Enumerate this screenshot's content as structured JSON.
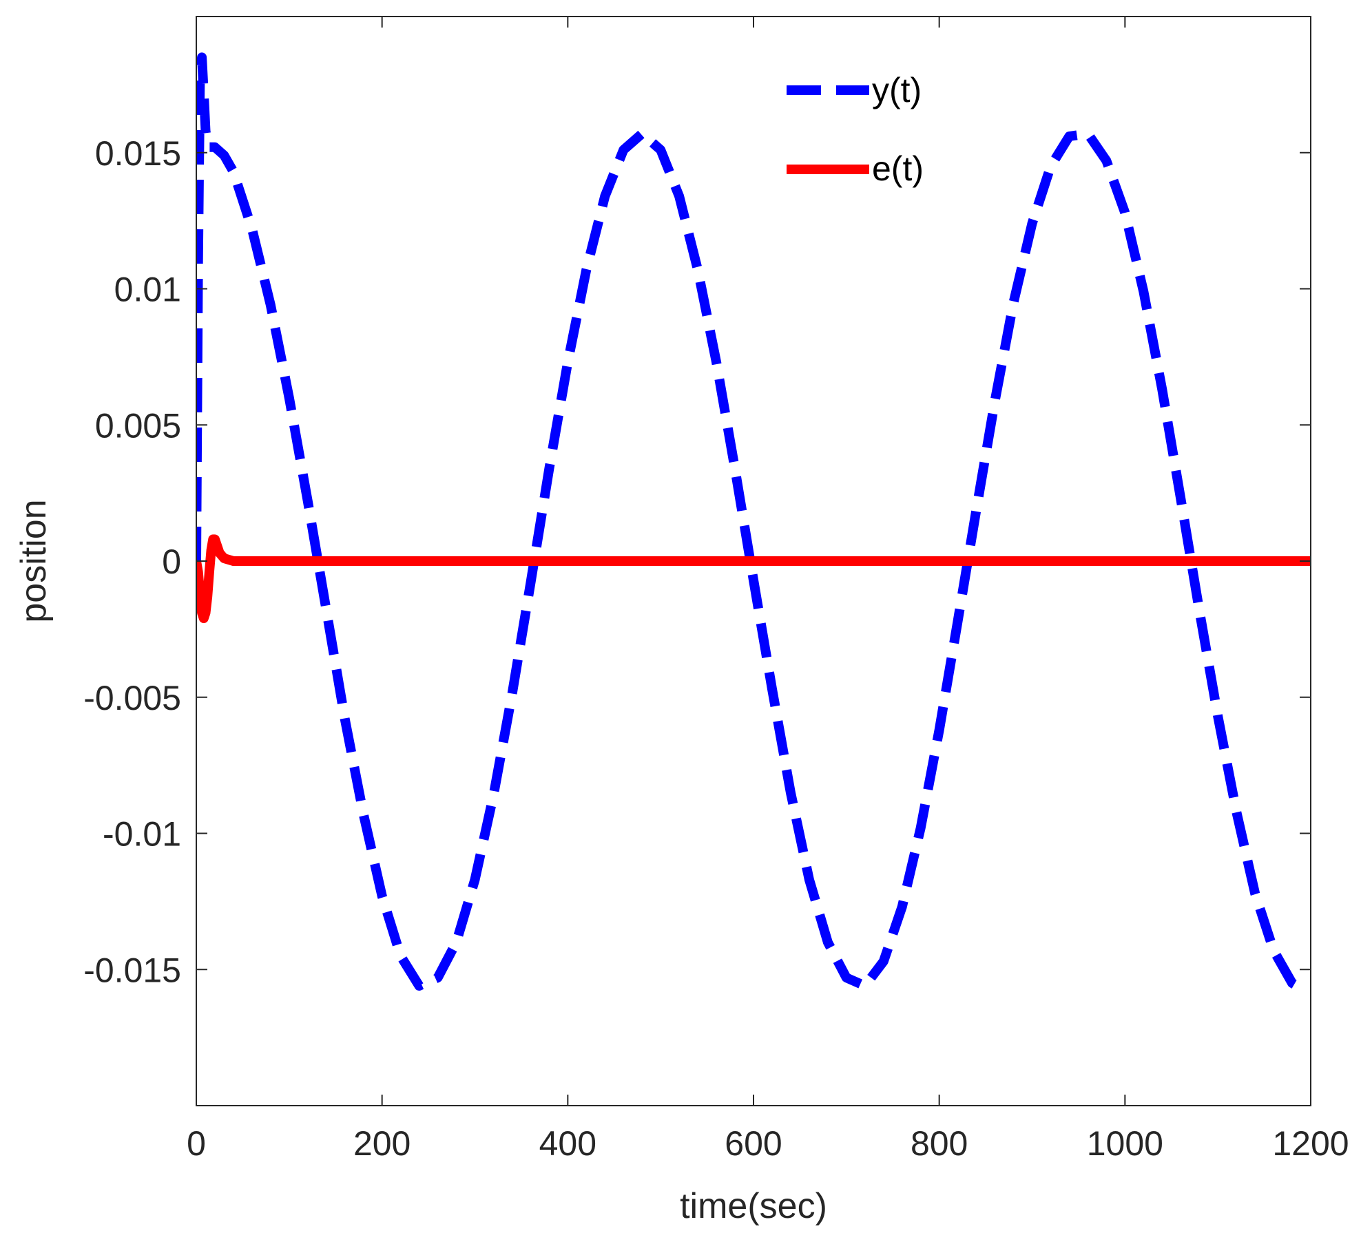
{
  "chart_data": {
    "type": "line",
    "xlabel": "time(sec)",
    "ylabel": "position",
    "xlim": [
      0,
      1200
    ],
    "ylim": [
      -0.02,
      0.02
    ],
    "xticks": [
      0,
      200,
      400,
      600,
      800,
      1000,
      1200
    ],
    "xtick_labels": [
      "0",
      "200",
      "400",
      "600",
      "800",
      "1000",
      "1200"
    ],
    "yticks": [
      -0.015,
      -0.01,
      -0.005,
      0,
      0.005,
      0.01,
      0.015
    ],
    "ytick_labels": [
      "-0.015",
      "-0.01",
      "-0.005",
      "0",
      "0.005",
      "0.01",
      "0.015"
    ],
    "grid": false,
    "legend_position": "top-right",
    "series": [
      {
        "name": "y(t)",
        "color": "#0000ff",
        "style": "dashed",
        "points": [
          [
            0,
            0
          ],
          [
            2,
            0.011
          ],
          [
            4,
            0.0178
          ],
          [
            6,
            0.0185
          ],
          [
            8,
            0.0172
          ],
          [
            10,
            0.0158
          ],
          [
            12,
            0.0153
          ],
          [
            14,
            0.0152
          ],
          [
            20,
            0.0152
          ],
          [
            30,
            0.0149
          ],
          [
            40,
            0.0143
          ],
          [
            60,
            0.0122
          ],
          [
            80,
            0.0094
          ],
          [
            100,
            0.006
          ],
          [
            120,
            0.0022
          ],
          [
            140,
            -0.0018
          ],
          [
            160,
            -0.0058
          ],
          [
            180,
            -0.0093
          ],
          [
            200,
            -0.0123
          ],
          [
            220,
            -0.0145
          ],
          [
            240,
            -0.0156
          ],
          [
            260,
            -0.0153
          ],
          [
            280,
            -0.014
          ],
          [
            300,
            -0.0117
          ],
          [
            320,
            -0.0086
          ],
          [
            340,
            -0.0049
          ],
          [
            360,
            -0.0008
          ],
          [
            380,
            0.0034
          ],
          [
            400,
            0.0073
          ],
          [
            420,
            0.0107
          ],
          [
            440,
            0.0134
          ],
          [
            460,
            0.0151
          ],
          [
            480,
            0.0157
          ],
          [
            500,
            0.0151
          ],
          [
            520,
            0.0134
          ],
          [
            540,
            0.0107
          ],
          [
            560,
            0.0073
          ],
          [
            580,
            0.0034
          ],
          [
            600,
            -0.0007
          ],
          [
            620,
            -0.0047
          ],
          [
            640,
            -0.0085
          ],
          [
            660,
            -0.0117
          ],
          [
            680,
            -0.014
          ],
          [
            700,
            -0.0153
          ],
          [
            720,
            -0.0156
          ],
          [
            740,
            -0.0147
          ],
          [
            760,
            -0.0127
          ],
          [
            780,
            -0.0098
          ],
          [
            800,
            -0.0062
          ],
          [
            820,
            -0.0022
          ],
          [
            840,
            0.0019
          ],
          [
            860,
            0.0059
          ],
          [
            880,
            0.0095
          ],
          [
            900,
            0.0124
          ],
          [
            920,
            0.0145
          ],
          [
            940,
            0.0156
          ],
          [
            960,
            0.0157
          ],
          [
            980,
            0.0147
          ],
          [
            1000,
            0.0128
          ],
          [
            1020,
            0.0099
          ],
          [
            1040,
            0.0063
          ],
          [
            1060,
            0.0023
          ],
          [
            1080,
            -0.0018
          ],
          [
            1100,
            -0.0057
          ],
          [
            1120,
            -0.0092
          ],
          [
            1140,
            -0.0122
          ],
          [
            1160,
            -0.0143
          ],
          [
            1180,
            -0.0155
          ],
          [
            1190,
            -0.0157
          ]
        ]
      },
      {
        "name": "e(t)",
        "color": "#ff0000",
        "style": "solid",
        "points": [
          [
            0,
            0
          ],
          [
            2,
            -0.0004
          ],
          [
            4,
            -0.0012
          ],
          [
            6,
            -0.0019
          ],
          [
            8,
            -0.0021
          ],
          [
            10,
            -0.0019
          ],
          [
            12,
            -0.0013
          ],
          [
            14,
            -0.0004
          ],
          [
            16,
            0.0004
          ],
          [
            18,
            0.0008
          ],
          [
            20,
            0.0008
          ],
          [
            22,
            0.0006
          ],
          [
            25,
            0.0003
          ],
          [
            30,
            0.0001
          ],
          [
            40,
            0
          ],
          [
            60,
            0
          ],
          [
            200,
            0
          ],
          [
            400,
            0
          ],
          [
            600,
            0
          ],
          [
            800,
            0
          ],
          [
            1000,
            0
          ],
          [
            1200,
            0
          ]
        ]
      }
    ]
  }
}
